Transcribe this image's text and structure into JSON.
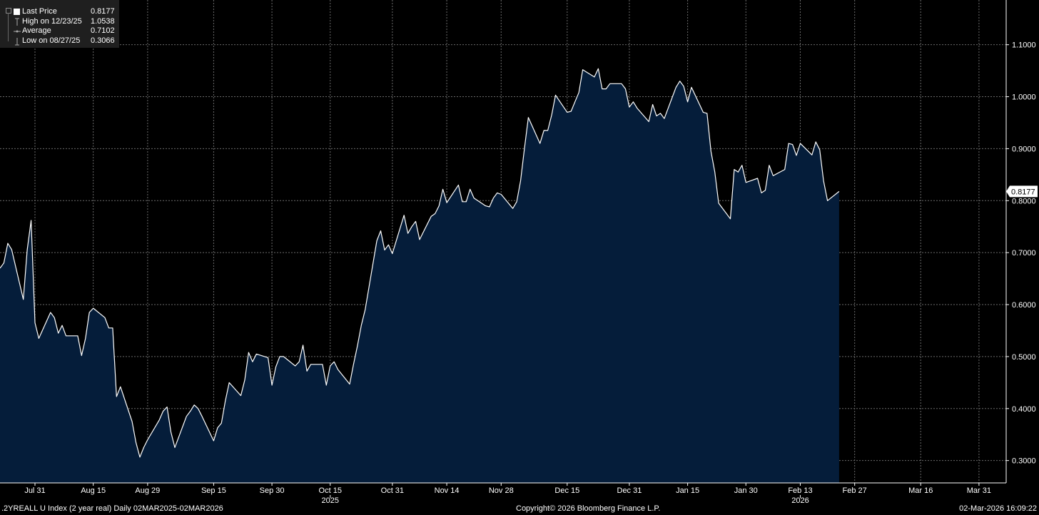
{
  "legend": {
    "items": [
      {
        "label": "Last Price",
        "value": "0.8177",
        "icon": "square-icon"
      },
      {
        "label": "High on 12/23/25",
        "value": "1.0538",
        "icon": "high-marker-icon"
      },
      {
        "label": "Average",
        "value": "0.7102",
        "icon": "average-marker-icon"
      },
      {
        "label": "Low on 08/27/25",
        "value": "0.3066",
        "icon": "low-marker-icon"
      }
    ]
  },
  "footer": {
    "left": ".2YREALL U Index (2 year real) Daily 02MAR2025-02MAR2026",
    "center": "Copyright© 2026 Bloomberg Finance L.P.",
    "right": "02-Mar-2026 16:09:22"
  },
  "colors": {
    "background": "#000000",
    "area_fill": "#051d3a",
    "line": "#ffffff",
    "grid": "#6a6a6a",
    "legend_bg": "#1f1f1f"
  },
  "chart_data": {
    "type": "area",
    "title": "",
    "xlabel": "",
    "ylabel": "",
    "grid": true,
    "legend_position": "top-left",
    "last_price_label": "0.8177",
    "x_tick_labels": [
      {
        "date": "2025-07-31",
        "label": "Jul 31"
      },
      {
        "date": "2025-08-15",
        "label": "Aug 15"
      },
      {
        "date": "2025-08-29",
        "label": "Aug 29"
      },
      {
        "date": "2025-09-15",
        "label": "Sep 15"
      },
      {
        "date": "2025-09-30",
        "label": "Sep 30"
      },
      {
        "date": "2025-10-15",
        "label": "Oct 15"
      },
      {
        "date": "2025-10-31",
        "label": "Oct 31"
      },
      {
        "date": "2025-11-14",
        "label": "Nov 14"
      },
      {
        "date": "2025-11-28",
        "label": "Nov 28"
      },
      {
        "date": "2025-12-15",
        "label": "Dec 15"
      },
      {
        "date": "2025-12-31",
        "label": "Dec 31"
      },
      {
        "date": "2026-01-15",
        "label": "Jan 15"
      },
      {
        "date": "2026-01-30",
        "label": "Jan 30"
      },
      {
        "date": "2026-02-13",
        "label": "Feb 13"
      },
      {
        "date": "2026-02-27",
        "label": "Feb 27"
      },
      {
        "date": "2026-03-16",
        "label": "Mar 16"
      },
      {
        "date": "2026-03-31",
        "label": "Mar 31"
      }
    ],
    "year_labels": [
      {
        "date": "2025-10-15",
        "label": "2025"
      },
      {
        "date": "2026-02-13",
        "label": "2026"
      }
    ],
    "y_tick_labels": [
      "0.3000",
      "0.4000",
      "0.5000",
      "0.6000",
      "0.7000",
      "0.8000",
      "0.9000",
      "1.0000",
      "1.1000"
    ],
    "ylim": [
      0.257,
      1.186
    ],
    "xlim": [
      "2025-07-22",
      "2026-04-07"
    ],
    "series": [
      {
        "values": [
          [
            "2025-07-22",
            0.67
          ],
          [
            "2025-07-23",
            0.68
          ],
          [
            "2025-07-24",
            0.718
          ],
          [
            "2025-07-25",
            0.706
          ],
          [
            "2025-07-28",
            0.61
          ],
          [
            "2025-07-29",
            0.705
          ],
          [
            "2025-07-30",
            0.762
          ],
          [
            "2025-07-31",
            0.565
          ],
          [
            "2025-08-01",
            0.535
          ],
          [
            "2025-08-04",
            0.585
          ],
          [
            "2025-08-05",
            0.575
          ],
          [
            "2025-08-06",
            0.545
          ],
          [
            "2025-08-07",
            0.56
          ],
          [
            "2025-08-08",
            0.54
          ],
          [
            "2025-08-11",
            0.54
          ],
          [
            "2025-08-12",
            0.502
          ],
          [
            "2025-08-13",
            0.535
          ],
          [
            "2025-08-14",
            0.585
          ],
          [
            "2025-08-15",
            0.593
          ],
          [
            "2025-08-18",
            0.575
          ],
          [
            "2025-08-19",
            0.555
          ],
          [
            "2025-08-20",
            0.555
          ],
          [
            "2025-08-21",
            0.423
          ],
          [
            "2025-08-22",
            0.442
          ],
          [
            "2025-08-25",
            0.375
          ],
          [
            "2025-08-26",
            0.335
          ],
          [
            "2025-08-27",
            0.3066
          ],
          [
            "2025-08-28",
            0.325
          ],
          [
            "2025-08-29",
            0.34
          ],
          [
            "2025-09-01",
            0.378
          ],
          [
            "2025-09-02",
            0.395
          ],
          [
            "2025-09-03",
            0.403
          ],
          [
            "2025-09-04",
            0.355
          ],
          [
            "2025-09-05",
            0.325
          ],
          [
            "2025-09-08",
            0.385
          ],
          [
            "2025-09-09",
            0.395
          ],
          [
            "2025-09-10",
            0.407
          ],
          [
            "2025-09-11",
            0.4
          ],
          [
            "2025-09-12",
            0.385
          ],
          [
            "2025-09-15",
            0.338
          ],
          [
            "2025-09-16",
            0.363
          ],
          [
            "2025-09-17",
            0.372
          ],
          [
            "2025-09-18",
            0.415
          ],
          [
            "2025-09-19",
            0.45
          ],
          [
            "2025-09-22",
            0.425
          ],
          [
            "2025-09-23",
            0.455
          ],
          [
            "2025-09-24",
            0.508
          ],
          [
            "2025-09-25",
            0.49
          ],
          [
            "2025-09-26",
            0.505
          ],
          [
            "2025-09-29",
            0.498
          ],
          [
            "2025-09-30",
            0.445
          ],
          [
            "2025-10-01",
            0.48
          ],
          [
            "2025-10-02",
            0.5
          ],
          [
            "2025-10-03",
            0.5
          ],
          [
            "2025-10-06",
            0.482
          ],
          [
            "2025-10-07",
            0.49
          ],
          [
            "2025-10-08",
            0.522
          ],
          [
            "2025-10-09",
            0.472
          ],
          [
            "2025-10-10",
            0.485
          ],
          [
            "2025-10-13",
            0.485
          ],
          [
            "2025-10-14",
            0.445
          ],
          [
            "2025-10-15",
            0.482
          ],
          [
            "2025-10-16",
            0.49
          ],
          [
            "2025-10-17",
            0.475
          ],
          [
            "2025-10-20",
            0.447
          ],
          [
            "2025-10-21",
            0.485
          ],
          [
            "2025-10-22",
            0.52
          ],
          [
            "2025-10-23",
            0.56
          ],
          [
            "2025-10-24",
            0.59
          ],
          [
            "2025-10-27",
            0.723
          ],
          [
            "2025-10-28",
            0.742
          ],
          [
            "2025-10-29",
            0.705
          ],
          [
            "2025-10-30",
            0.715
          ],
          [
            "2025-10-31",
            0.698
          ],
          [
            "2025-11-03",
            0.772
          ],
          [
            "2025-11-04",
            0.737
          ],
          [
            "2025-11-05",
            0.75
          ],
          [
            "2025-11-06",
            0.76
          ],
          [
            "2025-11-07",
            0.725
          ],
          [
            "2025-11-10",
            0.77
          ],
          [
            "2025-11-11",
            0.775
          ],
          [
            "2025-11-12",
            0.79
          ],
          [
            "2025-11-13",
            0.822
          ],
          [
            "2025-11-14",
            0.796
          ],
          [
            "2025-11-17",
            0.83
          ],
          [
            "2025-11-18",
            0.798
          ],
          [
            "2025-11-19",
            0.798
          ],
          [
            "2025-11-20",
            0.822
          ],
          [
            "2025-11-21",
            0.805
          ],
          [
            "2025-11-24",
            0.79
          ],
          [
            "2025-11-25",
            0.788
          ],
          [
            "2025-11-26",
            0.805
          ],
          [
            "2025-11-27",
            0.815
          ],
          [
            "2025-11-28",
            0.812
          ],
          [
            "2025-12-01",
            0.785
          ],
          [
            "2025-12-02",
            0.798
          ],
          [
            "2025-12-03",
            0.838
          ],
          [
            "2025-12-04",
            0.9
          ],
          [
            "2025-12-05",
            0.96
          ],
          [
            "2025-12-08",
            0.91
          ],
          [
            "2025-12-09",
            0.935
          ],
          [
            "2025-12-10",
            0.935
          ],
          [
            "2025-12-11",
            0.965
          ],
          [
            "2025-12-12",
            1.003
          ],
          [
            "2025-12-15",
            0.97
          ],
          [
            "2025-12-16",
            0.972
          ],
          [
            "2025-12-17",
            0.99
          ],
          [
            "2025-12-18",
            1.008
          ],
          [
            "2025-12-19",
            1.052
          ],
          [
            "2025-12-22",
            1.038
          ],
          [
            "2025-12-23",
            1.0538
          ],
          [
            "2025-12-24",
            1.015
          ],
          [
            "2025-12-25",
            1.015
          ],
          [
            "2025-12-26",
            1.025
          ],
          [
            "2025-12-29",
            1.025
          ],
          [
            "2025-12-30",
            1.015
          ],
          [
            "2025-12-31",
            0.98
          ],
          [
            "2026-01-01",
            0.99
          ],
          [
            "2026-01-02",
            0.978
          ],
          [
            "2026-01-05",
            0.952
          ],
          [
            "2026-01-06",
            0.985
          ],
          [
            "2026-01-07",
            0.963
          ],
          [
            "2026-01-08",
            0.968
          ],
          [
            "2026-01-09",
            0.958
          ],
          [
            "2026-01-12",
            1.018
          ],
          [
            "2026-01-13",
            1.03
          ],
          [
            "2026-01-14",
            1.02
          ],
          [
            "2026-01-15",
            0.99
          ],
          [
            "2026-01-16",
            1.018
          ],
          [
            "2026-01-19",
            0.97
          ],
          [
            "2026-01-20",
            0.968
          ],
          [
            "2026-01-21",
            0.895
          ],
          [
            "2026-01-22",
            0.855
          ],
          [
            "2026-01-23",
            0.795
          ],
          [
            "2026-01-26",
            0.765
          ],
          [
            "2026-01-27",
            0.86
          ],
          [
            "2026-01-28",
            0.855
          ],
          [
            "2026-01-29",
            0.868
          ],
          [
            "2026-01-30",
            0.835
          ],
          [
            "2026-02-02",
            0.843
          ],
          [
            "2026-02-03",
            0.815
          ],
          [
            "2026-02-04",
            0.82
          ],
          [
            "2026-02-05",
            0.868
          ],
          [
            "2026-02-06",
            0.848
          ],
          [
            "2026-02-09",
            0.86
          ],
          [
            "2026-02-10",
            0.91
          ],
          [
            "2026-02-11",
            0.908
          ],
          [
            "2026-02-12",
            0.887
          ],
          [
            "2026-02-13",
            0.91
          ],
          [
            "2026-02-16",
            0.888
          ],
          [
            "2026-02-17",
            0.913
          ],
          [
            "2026-02-18",
            0.898
          ],
          [
            "2026-02-19",
            0.838
          ],
          [
            "2026-02-20",
            0.8
          ],
          [
            "2026-02-23",
            0.8177
          ]
        ]
      }
    ]
  }
}
